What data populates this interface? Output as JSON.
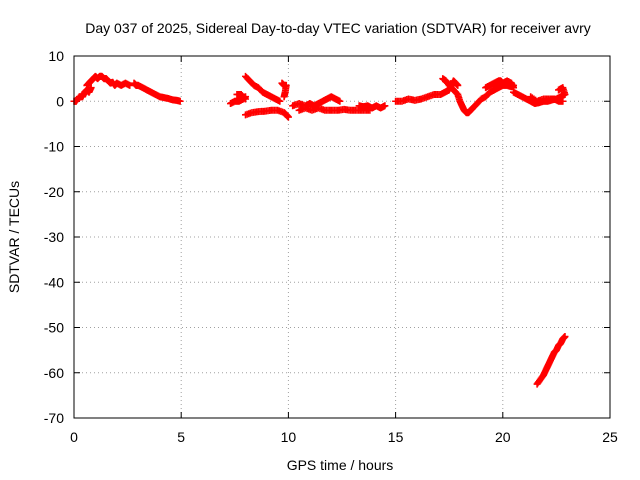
{
  "chart_data": {
    "type": "scatter",
    "title": "Day 037 of 2025, Sidereal Day-to-day VTEC variation (SDTVAR) for receiver avry",
    "xlabel": "GPS time / hours",
    "ylabel": "SDTVAR / TECUs",
    "xlim": [
      0,
      25
    ],
    "ylim": [
      -70,
      10
    ],
    "xticks": [
      "0",
      "5",
      "10",
      "15",
      "20",
      "25"
    ],
    "yticks": [
      "10",
      "0",
      "-10",
      "-20",
      "-30",
      "-40",
      "-50",
      "-60",
      "-70"
    ],
    "grid": true,
    "color": "#ff0000",
    "marker": "plus",
    "segments": [
      {
        "name": "arc-1",
        "points": [
          [
            0.0,
            0
          ],
          [
            0.1,
            0
          ],
          [
            0.25,
            1
          ],
          [
            0.4,
            1
          ],
          [
            0.5,
            2
          ],
          [
            0.6,
            2.5
          ],
          [
            0.7,
            2
          ],
          [
            0.8,
            3
          ]
        ]
      },
      {
        "name": "arc-2",
        "points": [
          [
            0.6,
            3.5
          ],
          [
            0.7,
            4
          ],
          [
            0.8,
            4.5
          ],
          [
            0.9,
            5
          ],
          [
            1.0,
            5.5
          ],
          [
            1.1,
            5
          ],
          [
            1.2,
            5.5
          ],
          [
            1.3,
            5.5
          ],
          [
            1.4,
            5
          ],
          [
            1.5,
            5
          ],
          [
            1.6,
            4.5
          ],
          [
            1.7,
            4
          ],
          [
            1.8,
            4.2
          ],
          [
            1.9,
            3.5
          ],
          [
            2.0,
            4
          ],
          [
            2.2,
            3.5
          ],
          [
            2.4,
            4
          ],
          [
            2.6,
            3.5
          ]
        ]
      },
      {
        "name": "arc-3",
        "points": [
          [
            2.8,
            4
          ],
          [
            2.9,
            3.5
          ],
          [
            3.0,
            3.5
          ],
          [
            3.2,
            3
          ],
          [
            3.4,
            2.5
          ],
          [
            3.6,
            2
          ],
          [
            3.8,
            1.5
          ],
          [
            4.0,
            1
          ],
          [
            4.2,
            0.8
          ],
          [
            4.4,
            0.6
          ],
          [
            4.6,
            0.3
          ],
          [
            4.8,
            0.2
          ],
          [
            4.95,
            0
          ]
        ]
      },
      {
        "name": "arc-4",
        "points": [
          [
            7.3,
            -0.5
          ],
          [
            7.5,
            0
          ],
          [
            7.7,
            0
          ],
          [
            7.9,
            0.5
          ],
          [
            8.0,
            1
          ]
        ]
      },
      {
        "name": "arc-5",
        "points": [
          [
            8.0,
            5.5
          ],
          [
            8.2,
            4.5
          ],
          [
            8.4,
            3.5
          ],
          [
            8.6,
            3
          ],
          [
            8.8,
            2
          ],
          [
            9.0,
            1.5
          ],
          [
            9.2,
            1
          ],
          [
            9.4,
            0.5
          ],
          [
            9.6,
            0
          ]
        ]
      },
      {
        "name": "arc-6",
        "points": [
          [
            7.6,
            1.5
          ],
          [
            7.8,
            1.5
          ],
          [
            8.0,
            0.5
          ]
        ]
      },
      {
        "name": "arc-7",
        "points": [
          [
            8.0,
            -3
          ],
          [
            8.3,
            -2.5
          ],
          [
            8.6,
            -2.3
          ],
          [
            8.9,
            -2.2
          ],
          [
            9.2,
            -2
          ],
          [
            9.5,
            -2
          ],
          [
            9.8,
            -2.5
          ],
          [
            9.9,
            -3
          ],
          [
            10.0,
            -3.5
          ]
        ]
      },
      {
        "name": "arc-8",
        "points": [
          [
            9.7,
            4
          ],
          [
            9.8,
            3.5
          ],
          [
            9.9,
            3.5
          ],
          [
            9.85,
            2
          ],
          [
            9.8,
            1
          ]
        ]
      },
      {
        "name": "arc-9",
        "points": [
          [
            10.2,
            -1
          ],
          [
            10.5,
            -0.5
          ],
          [
            10.8,
            -1
          ],
          [
            11.0,
            -0.5
          ],
          [
            11.2,
            -1
          ],
          [
            11.4,
            -0.5
          ],
          [
            11.6,
            0
          ],
          [
            11.8,
            0.5
          ],
          [
            12.0,
            1
          ],
          [
            12.2,
            0.5
          ],
          [
            12.4,
            0
          ]
        ]
      },
      {
        "name": "arc-10",
        "points": [
          [
            10.5,
            -2
          ],
          [
            10.8,
            -1.5
          ],
          [
            11.1,
            -2
          ],
          [
            11.4,
            -1.5
          ],
          [
            11.7,
            -2
          ],
          [
            12.0,
            -2
          ],
          [
            12.3,
            -2
          ],
          [
            12.6,
            -1.8
          ],
          [
            12.9,
            -2
          ],
          [
            13.2,
            -2
          ],
          [
            13.5,
            -2
          ],
          [
            13.8,
            -2
          ]
        ]
      },
      {
        "name": "arc-11",
        "points": [
          [
            13.3,
            -1
          ],
          [
            13.5,
            -1.2
          ],
          [
            13.7,
            -1
          ],
          [
            13.9,
            -1.5
          ],
          [
            14.1,
            -1
          ],
          [
            14.3,
            -1.5
          ],
          [
            14.5,
            -1
          ]
        ]
      },
      {
        "name": "arc-12",
        "points": [
          [
            15.0,
            0
          ],
          [
            15.3,
            0
          ],
          [
            15.6,
            0.5
          ],
          [
            15.9,
            0.2
          ],
          [
            16.2,
            0.5
          ],
          [
            16.5,
            1
          ],
          [
            16.8,
            1.5
          ],
          [
            17.1,
            1.5
          ],
          [
            17.3,
            2
          ],
          [
            17.5,
            2.5
          ],
          [
            17.6,
            3.5
          ],
          [
            17.7,
            4.5
          ],
          [
            17.8,
            4
          ],
          [
            17.9,
            3.5
          ]
        ]
      },
      {
        "name": "arc-13",
        "points": [
          [
            17.2,
            5
          ],
          [
            17.35,
            4.5
          ],
          [
            17.5,
            3.5
          ],
          [
            17.7,
            2.5
          ],
          [
            17.9,
            1.5
          ],
          [
            18.0,
            0
          ],
          [
            18.1,
            -1
          ],
          [
            18.2,
            -2
          ],
          [
            18.3,
            -2.5
          ],
          [
            18.4,
            -2.5
          ],
          [
            18.5,
            -2
          ],
          [
            18.6,
            -1.5
          ],
          [
            18.8,
            -0.5
          ],
          [
            19.0,
            0.5
          ],
          [
            19.2,
            1
          ],
          [
            19.4,
            2
          ],
          [
            19.6,
            2.5
          ],
          [
            19.8,
            3
          ],
          [
            20.0,
            3.5
          ],
          [
            20.2,
            3.5
          ],
          [
            20.4,
            3.2
          ],
          [
            20.5,
            3.5
          ]
        ]
      },
      {
        "name": "arc-14",
        "points": [
          [
            19.2,
            3
          ],
          [
            19.4,
            3.5
          ],
          [
            19.6,
            4
          ],
          [
            19.8,
            4.5
          ],
          [
            19.9,
            4.5
          ],
          [
            20.0,
            4
          ],
          [
            20.2,
            4.5
          ],
          [
            20.4,
            4
          ],
          [
            20.5,
            3
          ]
        ]
      },
      {
        "name": "arc-15",
        "points": [
          [
            20.5,
            2
          ],
          [
            20.7,
            1.5
          ],
          [
            20.9,
            1
          ],
          [
            21.1,
            0.5
          ],
          [
            21.3,
            0
          ],
          [
            21.5,
            -0.5
          ],
          [
            21.7,
            -0.3
          ],
          [
            21.9,
            0
          ],
          [
            22.1,
            0
          ],
          [
            22.3,
            0.3
          ],
          [
            22.5,
            0.5
          ],
          [
            22.7,
            1
          ],
          [
            22.9,
            1.5
          ],
          [
            22.8,
            3
          ],
          [
            22.6,
            2.5
          ]
        ]
      },
      {
        "name": "arc-16",
        "points": [
          [
            21.3,
            1
          ],
          [
            21.6,
            0
          ],
          [
            21.9,
            0.5
          ],
          [
            22.2,
            0.5
          ],
          [
            22.4,
            0.5
          ],
          [
            22.6,
            0
          ],
          [
            22.8,
            0
          ]
        ]
      },
      {
        "name": "arc-17",
        "points": [
          [
            21.6,
            -62.5
          ],
          [
            21.75,
            -61.5
          ],
          [
            21.9,
            -60.5
          ],
          [
            22.0,
            -59.5
          ],
          [
            22.1,
            -58.5
          ],
          [
            22.2,
            -57.5
          ],
          [
            22.3,
            -56.5
          ],
          [
            22.4,
            -55.5
          ],
          [
            22.5,
            -55
          ],
          [
            22.6,
            -54
          ],
          [
            22.7,
            -53.5
          ],
          [
            22.8,
            -52.5
          ],
          [
            22.9,
            -52
          ]
        ]
      }
    ]
  }
}
